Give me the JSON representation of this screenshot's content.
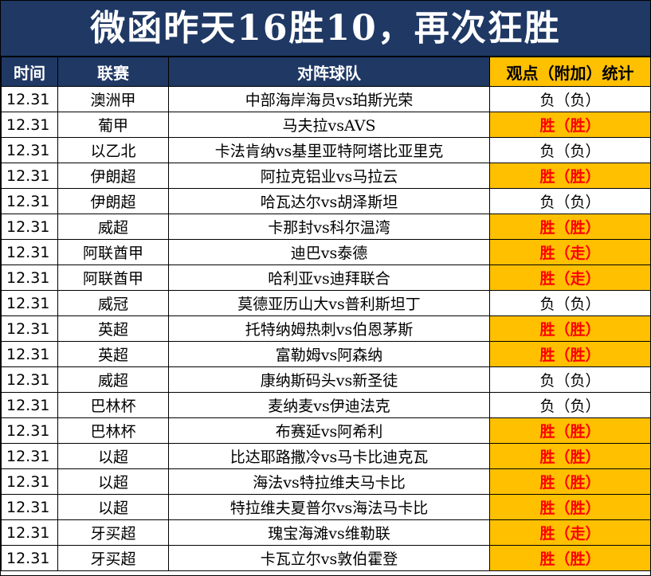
{
  "title": "微函昨天16胜10，再次狂胜",
  "headers": {
    "time": "时间",
    "league": "联赛",
    "match": "对阵球队",
    "stat": "观点（附加）统计"
  },
  "colors": {
    "header_bg": "#1f3864",
    "highlight": "#ffc000",
    "win_text": "#ff0000"
  },
  "rows": [
    {
      "time": "12.31",
      "league": "澳洲甲",
      "match": "中部海岸海员vs珀斯光荣",
      "result": "负（负）",
      "win": false
    },
    {
      "time": "12.31",
      "league": "葡甲",
      "match": "马夫拉vsAVS",
      "result": "胜（胜）",
      "win": true
    },
    {
      "time": "12.31",
      "league": "以乙北",
      "match": "卡法肯纳vs基里亚特阿塔比亚里克",
      "result": "负（负）",
      "win": false
    },
    {
      "time": "12.31",
      "league": "伊朗超",
      "match": "阿拉克铝业vs马拉云",
      "result": "胜（胜）",
      "win": true
    },
    {
      "time": "12.31",
      "league": "伊朗超",
      "match": "哈瓦达尔vs胡泽斯坦",
      "result": "负（负）",
      "win": false
    },
    {
      "time": "12.31",
      "league": "威超",
      "match": "卡那封vs科尔温湾",
      "result": "胜（胜）",
      "win": true
    },
    {
      "time": "12.31",
      "league": "阿联酋甲",
      "match": "迪巴vs泰德",
      "result": "胜（走）",
      "win": true
    },
    {
      "time": "12.31",
      "league": "阿联酋甲",
      "match": "哈利亚vs迪拜联合",
      "result": "胜（走）",
      "win": true
    },
    {
      "time": "12.31",
      "league": "威冠",
      "match": "莫德亚历山大vs普利斯坦丁",
      "result": "负（负）",
      "win": false
    },
    {
      "time": "12.31",
      "league": "英超",
      "match": "托特纳姆热刺vs伯恩茅斯",
      "result": "胜（胜）",
      "win": true
    },
    {
      "time": "12.31",
      "league": "英超",
      "match": "富勒姆vs阿森纳",
      "result": "胜（胜）",
      "win": true
    },
    {
      "time": "12.31",
      "league": "威超",
      "match": "康纳斯码头vs新圣徒",
      "result": "负（负）",
      "win": false
    },
    {
      "time": "12.31",
      "league": "巴林杯",
      "match": "麦纳麦vs伊迪法克",
      "result": "负（负）",
      "win": false
    },
    {
      "time": "12.31",
      "league": "巴林杯",
      "match": "布赛延vs阿希利",
      "result": "胜（胜）",
      "win": true
    },
    {
      "time": "12.31",
      "league": "以超",
      "match": "比达耶路撒冷vs马卡比迪克瓦",
      "result": "胜（胜）",
      "win": true
    },
    {
      "time": "12.31",
      "league": "以超",
      "match": "海法vs特拉维夫马卡比",
      "result": "胜（胜）",
      "win": true
    },
    {
      "time": "12.31",
      "league": "以超",
      "match": "特拉维夫夏普尔vs海法马卡比",
      "result": "胜（胜）",
      "win": true
    },
    {
      "time": "12.31",
      "league": "牙买超",
      "match": "瑰宝海滩vs维勒联",
      "result": "胜（走）",
      "win": true
    },
    {
      "time": "12.31",
      "league": "牙买超",
      "match": "卡瓦立尔vs敦伯霍登",
      "result": "胜（胜）",
      "win": true
    }
  ]
}
